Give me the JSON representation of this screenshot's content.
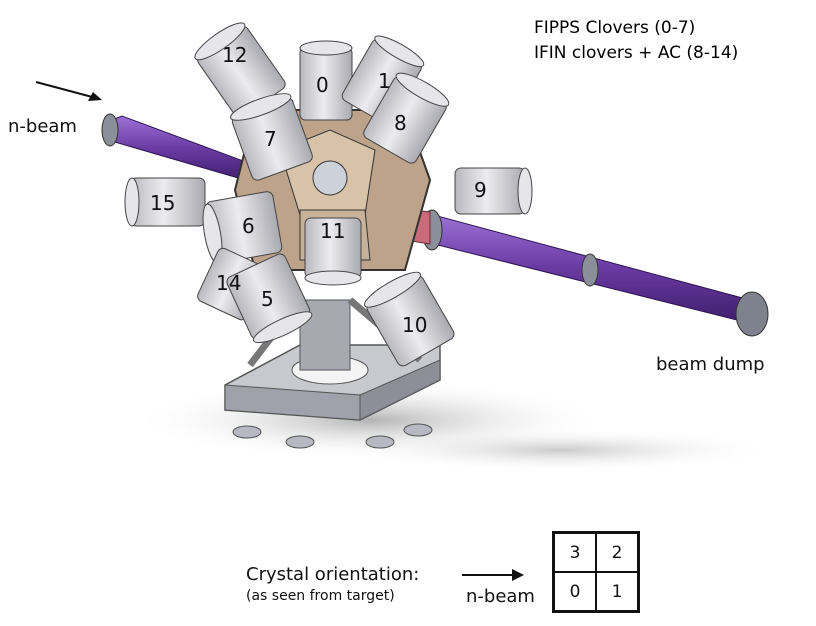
{
  "legend": {
    "line1": "FIPPS Clovers (0-7)",
    "line2": "IFIN clovers + AC (8-14)"
  },
  "labels": {
    "n_beam_top": "n-beam",
    "beam_dump": "beam dump",
    "n_beam_bottom": "n-beam"
  },
  "detectors": [
    "12",
    "0",
    "1",
    "8",
    "7",
    "9",
    "15",
    "6",
    "11",
    "14",
    "5",
    "10"
  ],
  "orientation": {
    "title": "Crystal orientation:",
    "subtitle": "(as seen from target)",
    "grid": [
      "3",
      "2",
      "0",
      "1"
    ]
  },
  "colors": {
    "beam_pipe": "#6f3fa8",
    "detector": "#d8d8dc",
    "frame": "#b9bcc3",
    "shadow": "#bdbdbd"
  }
}
